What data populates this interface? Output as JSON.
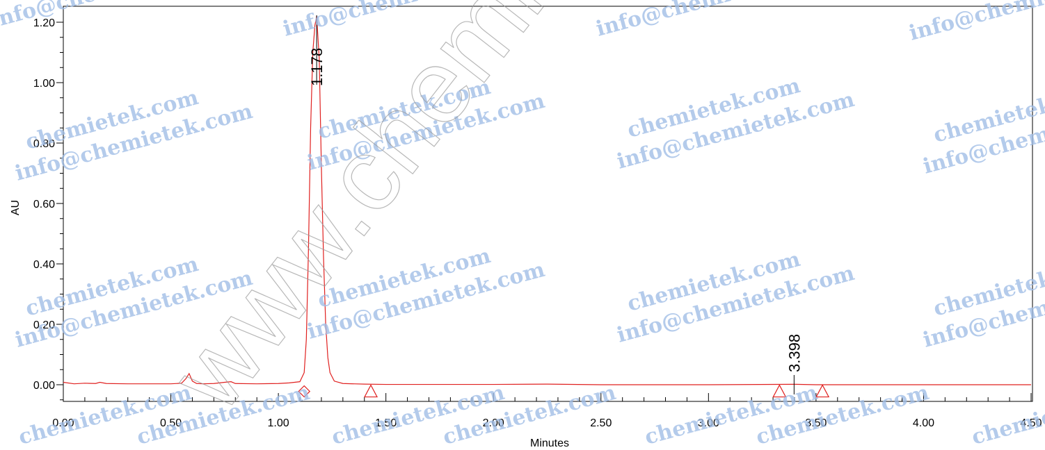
{
  "chart_data": {
    "type": "line",
    "title": "",
    "xlabel": "Minutes",
    "ylabel": "AU",
    "xlim": [
      0.0,
      4.5
    ],
    "ylim": [
      -0.06,
      1.26
    ],
    "x_ticks": [
      0.0,
      0.5,
      1.0,
      1.5,
      2.0,
      2.5,
      3.0,
      3.5,
      4.0,
      4.5
    ],
    "x_tick_labels": [
      "0.00",
      "0.50",
      "1.00",
      "1.50",
      "2.00",
      "2.50",
      "3.00",
      "3.50",
      "4.00",
      "4.50"
    ],
    "y_ticks": [
      0.0,
      0.2,
      0.4,
      0.6,
      0.8,
      1.0,
      1.2
    ],
    "y_tick_labels": [
      "0.00",
      "0.20",
      "0.40",
      "0.60",
      "0.80",
      "1.00",
      "1.20"
    ],
    "line_color": "#e0201f",
    "grid": false,
    "series": [
      {
        "x": [
          0.0,
          0.05,
          0.1,
          0.15,
          0.17,
          0.2,
          0.3,
          0.4,
          0.5,
          0.55,
          0.57,
          0.585,
          0.6,
          0.62,
          0.65,
          0.7,
          0.75,
          0.78,
          0.8,
          0.9,
          1.0,
          1.05,
          1.1,
          1.12,
          1.13,
          1.14,
          1.15,
          1.16,
          1.17,
          1.178,
          1.19,
          1.2,
          1.21,
          1.22,
          1.23,
          1.24,
          1.26,
          1.3,
          1.4,
          1.5,
          2.0,
          2.25,
          2.5,
          3.0,
          3.398,
          3.5,
          4.0,
          4.5
        ],
        "y": [
          0.008,
          0.003,
          0.005,
          0.004,
          0.008,
          0.004,
          0.003,
          0.003,
          0.003,
          0.005,
          0.02,
          0.037,
          0.012,
          0.004,
          0.003,
          0.004,
          0.008,
          0.01,
          0.004,
          0.003,
          0.004,
          0.006,
          0.01,
          0.04,
          0.15,
          0.45,
          0.85,
          1.1,
          1.19,
          1.22,
          1.08,
          0.72,
          0.42,
          0.2,
          0.09,
          0.04,
          0.012,
          0.004,
          0.002,
          0.001,
          0.001,
          0.002,
          0.0,
          0.0,
          0.0015,
          0.0,
          0.0,
          0.0
        ]
      }
    ],
    "peaks": [
      {
        "label": "1.178",
        "x": 1.178,
        "y": 1.22
      },
      {
        "label": "3.398",
        "x": 3.398,
        "y": 0.0015
      }
    ],
    "markers": [
      {
        "shape": "diamond",
        "x": 1.12,
        "y": -0.022
      },
      {
        "shape": "triangle",
        "x": 1.43,
        "y": -0.022
      },
      {
        "shape": "triangle",
        "x": 3.33,
        "y": -0.022
      },
      {
        "shape": "triangle",
        "x": 3.53,
        "y": -0.022
      }
    ]
  },
  "watermark": {
    "domain": "chemietek.com",
    "email": "info@chemietek.com",
    "site": "www.chemietek.com"
  }
}
